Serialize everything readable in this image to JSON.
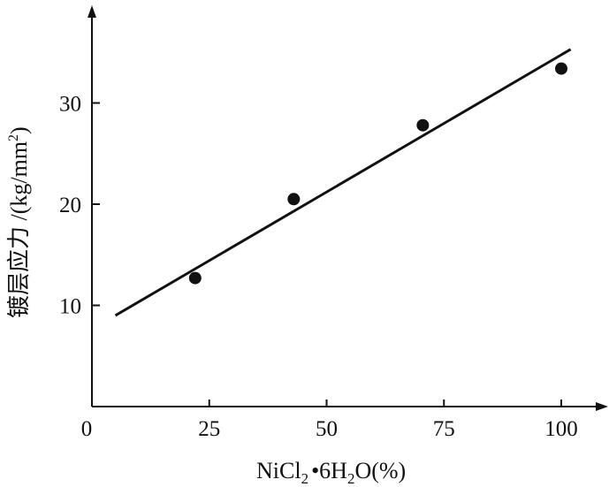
{
  "chart_data": {
    "type": "scatter",
    "title": "",
    "xlabel": "NiCl₂·6H₂O(%)",
    "xlabel_parts": {
      "main": "NiCl",
      "sub1": "2",
      "mid": "•6H",
      "sub2": "2",
      "tail": "O(%)"
    },
    "ylabel": "镀层应力 /(kg/mm²)",
    "ylabel_parts": {
      "main": "镀层应力 /(kg/mm",
      "sup": "2",
      "tail": ")"
    },
    "xlim": [
      0,
      110
    ],
    "ylim": [
      0,
      40
    ],
    "xticks": [
      0,
      25,
      50,
      75,
      100
    ],
    "xtick_labels": [
      "0",
      "25",
      "50",
      "75",
      "100"
    ],
    "yticks": [
      10,
      20,
      30
    ],
    "ytick_labels": [
      "10",
      "20",
      "30"
    ],
    "grid": false,
    "legend": "none",
    "series": [
      {
        "type": "scatter",
        "x": [
          22,
          43,
          70.5,
          100
        ],
        "y": [
          12.7,
          20.5,
          27.8,
          33.4
        ]
      },
      {
        "type": "line",
        "x": [
          5,
          102
        ],
        "y": [
          9,
          35.3
        ]
      }
    ]
  },
  "colors": {
    "axis": "#111111",
    "marker": "#111111",
    "line": "#111111"
  }
}
